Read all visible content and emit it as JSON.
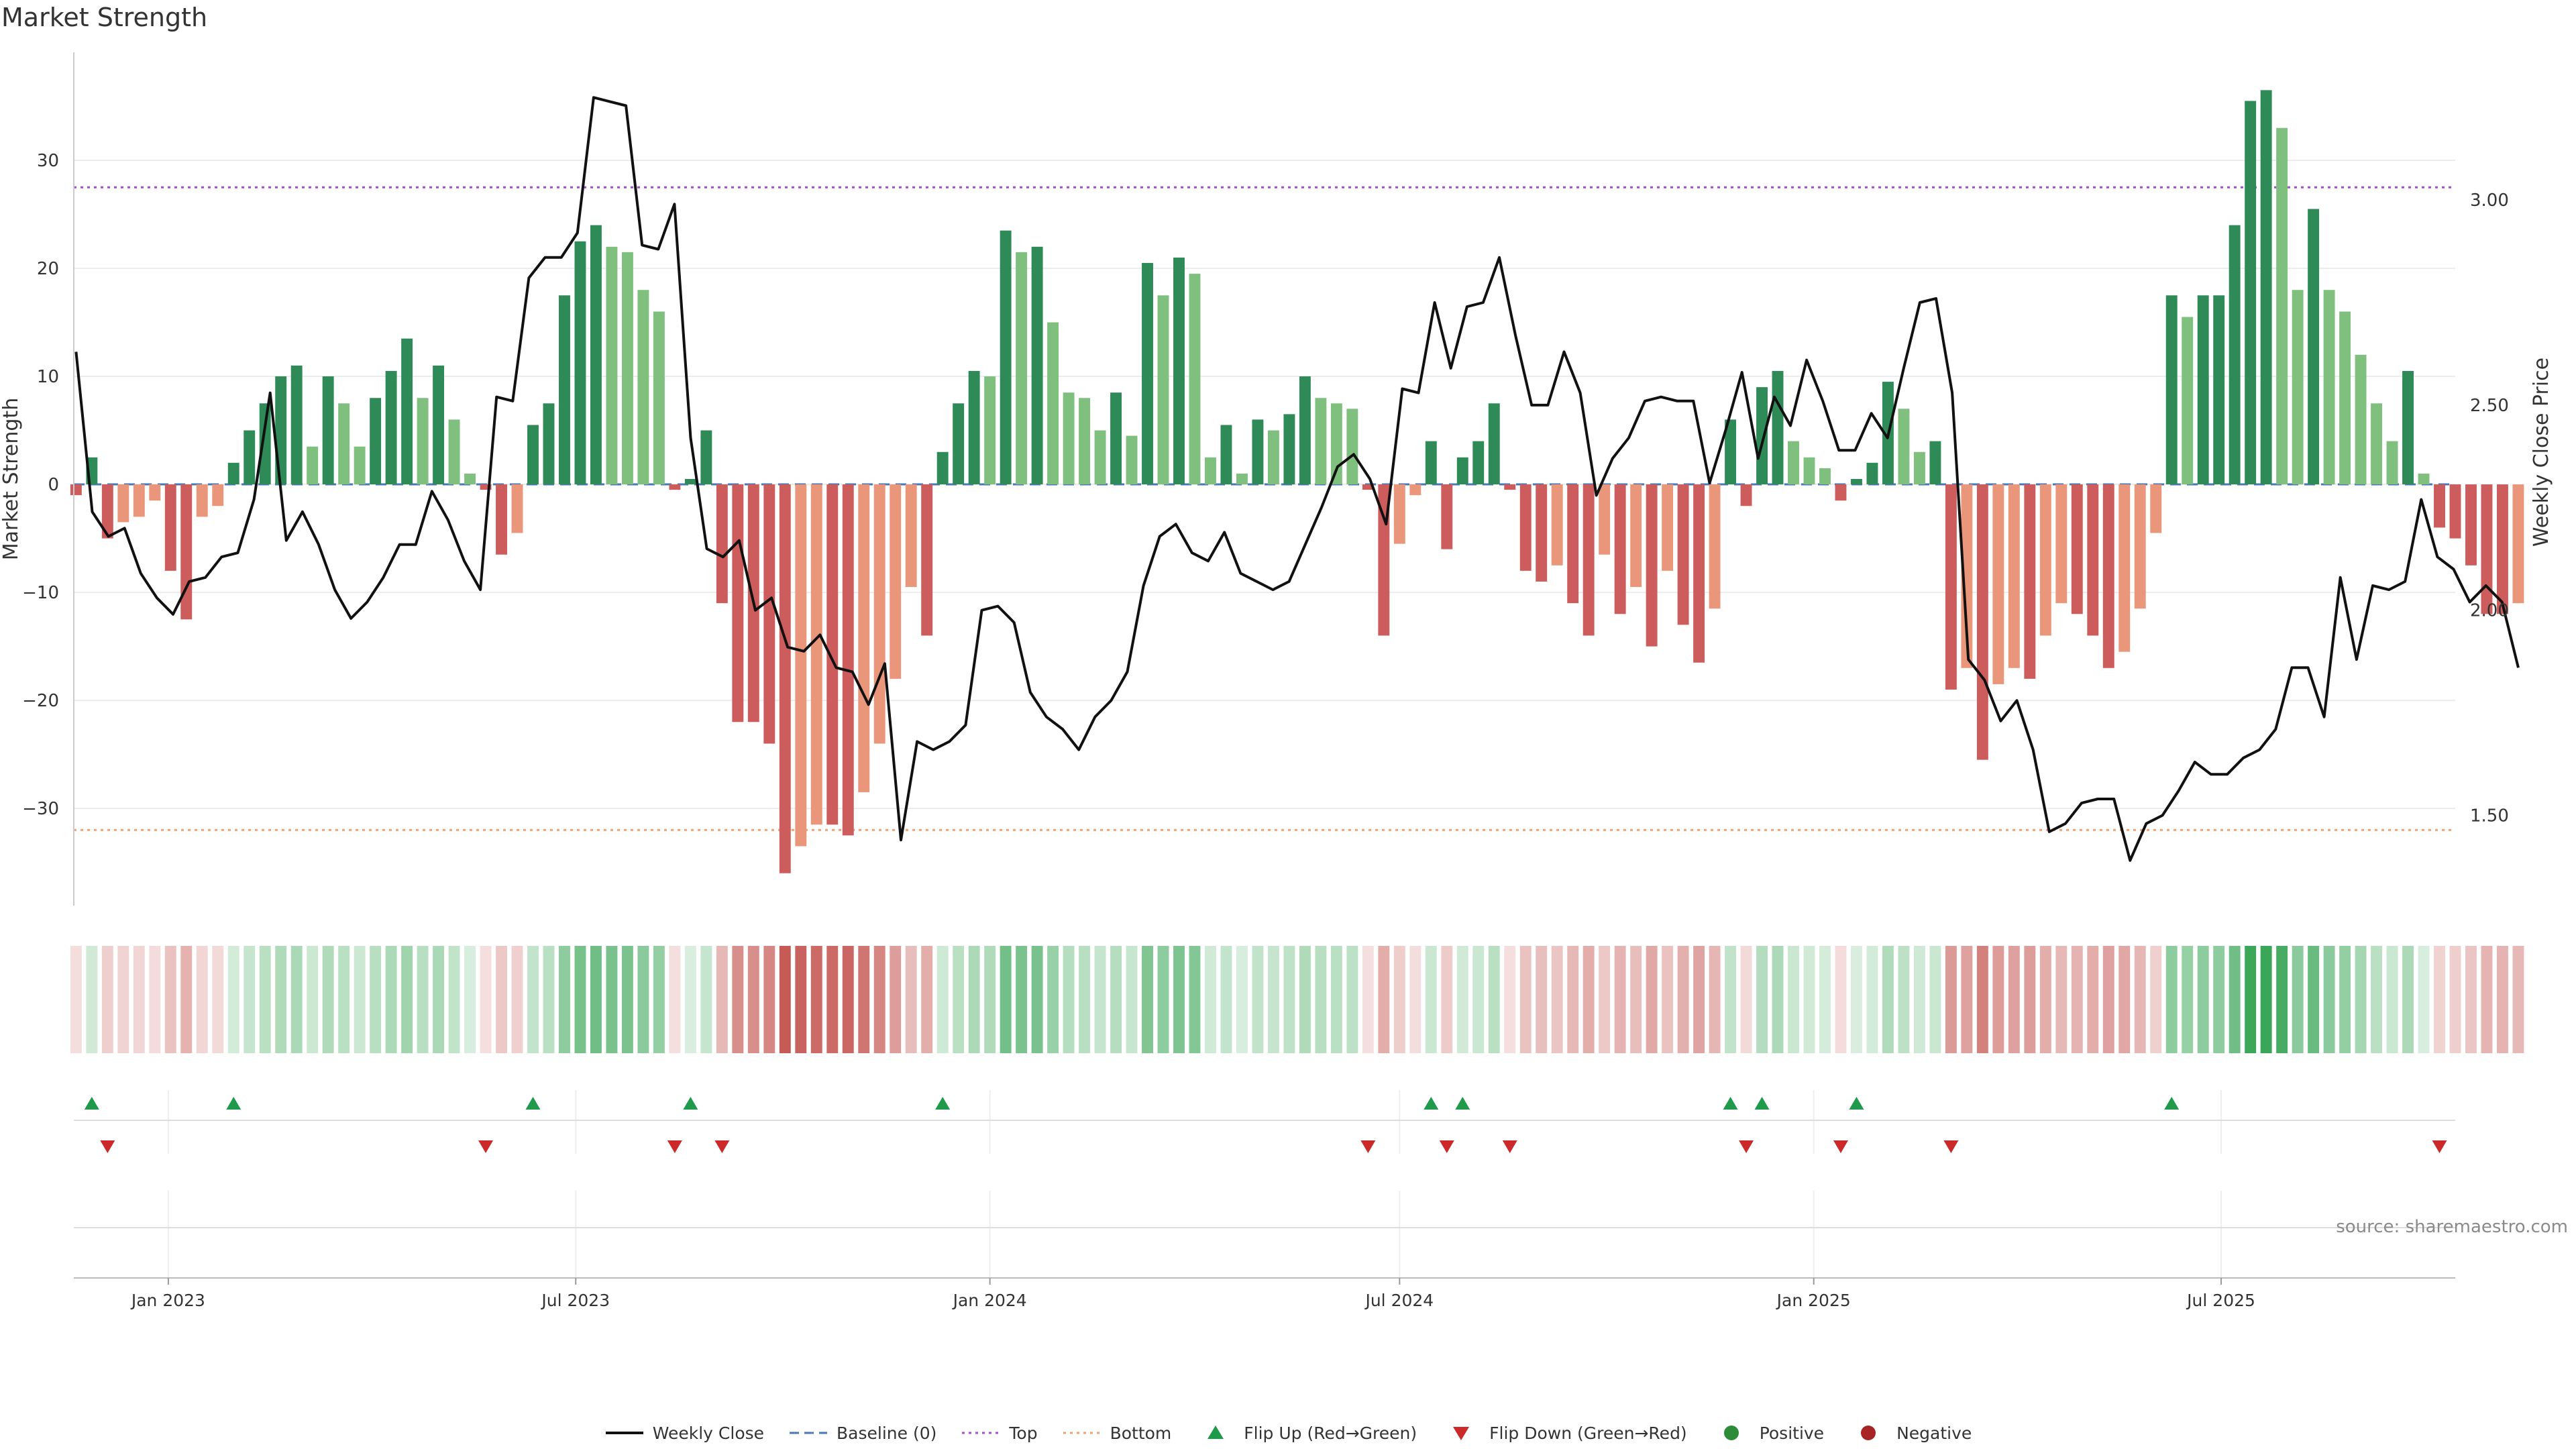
{
  "title": "Market Strength",
  "source": "source: sharemaestro.com",
  "chart_data": {
    "type": "bar",
    "ylabel_left": "Market Strength",
    "ylabel_right": "Weekly Close Price",
    "ylim_left": [
      -39,
      40
    ],
    "ylim_right": [
      1.28,
      3.36
    ],
    "yticks_left": [
      -30,
      -20,
      -10,
      0,
      10,
      20,
      30
    ],
    "yticks_right": [
      1.5,
      2.0,
      2.5,
      3.0
    ],
    "ytick_labels_left": [
      "−30",
      "−20",
      "−10",
      "0",
      "10",
      "20",
      "30"
    ],
    "ytick_labels_right": [
      "1.50",
      "2.00",
      "2.50",
      "3.00"
    ],
    "top_level": 27.5,
    "bottom_level": -32,
    "x_range": [
      "2022-11-20",
      "2025-10-13"
    ],
    "x_ticks": [
      {
        "date": "2023-01-01",
        "label": "Jan 2023"
      },
      {
        "date": "2023-07-01",
        "label": "Jul 2023"
      },
      {
        "date": "2024-01-01",
        "label": "Jan 2024"
      },
      {
        "date": "2024-07-01",
        "label": "Jul 2024"
      },
      {
        "date": "2025-01-01",
        "label": "Jan 2025"
      },
      {
        "date": "2025-07-01",
        "label": "Jul 2025"
      }
    ],
    "start_date": "2022-11-21",
    "weekly_step_days": 7,
    "strength": [
      -1,
      2.5,
      -5,
      -3.5,
      -3,
      -1.5,
      -8,
      -12.5,
      -3,
      -2,
      2,
      5,
      7.5,
      10,
      11,
      3.5,
      10,
      7.5,
      3.5,
      8,
      10.5,
      13.5,
      8,
      11,
      6,
      1,
      -0.5,
      -6.5,
      -4.5,
      5.5,
      7.5,
      17.5,
      22.5,
      24,
      22,
      21.5,
      18,
      16,
      -0.5,
      0.5,
      5,
      -11,
      -22,
      -22,
      -24,
      -36,
      -33.5,
      -31.5,
      -31.5,
      -32.5,
      -28.5,
      -24,
      -18,
      -9.5,
      -14,
      3,
      7.5,
      10.5,
      10,
      23.5,
      21.5,
      22,
      15,
      8.5,
      8,
      5,
      8.5,
      4.5,
      20.5,
      17.5,
      21,
      19.5,
      2.5,
      5.5,
      1,
      6,
      5,
      6.5,
      10,
      8,
      7.5,
      7,
      -0.5,
      -14,
      -5.5,
      -1,
      4,
      -6,
      2.5,
      4,
      7.5,
      -0.5,
      -8,
      -9,
      -7.5,
      -11,
      -14,
      -6.5,
      -12,
      -9.5,
      -15,
      -8,
      -13,
      -16.5,
      -11.5,
      6,
      -2,
      9,
      10.5,
      4,
      2.5,
      1.5,
      -1.5,
      0.5,
      2,
      9.5,
      7,
      3,
      4,
      -19,
      -17,
      -25.5,
      -18.5,
      -17,
      -18,
      -14,
      -11,
      -12,
      -14,
      -17,
      -15.5,
      -11.5,
      -4.5,
      17.5,
      15.5,
      17.5,
      17.5,
      24,
      35.5,
      36.5,
      33,
      18,
      25.5,
      18,
      16,
      12,
      7.5,
      4,
      10.5,
      1,
      -4,
      -5,
      -7.5,
      -12,
      -12,
      -11
    ],
    "weekly_close": [
      2.63,
      2.24,
      2.18,
      2.2,
      2.09,
      2.03,
      1.99,
      2.07,
      2.08,
      2.13,
      2.14,
      2.27,
      2.53,
      2.17,
      2.24,
      2.16,
      2.05,
      1.98,
      2.02,
      2.08,
      2.16,
      2.16,
      2.29,
      2.22,
      2.12,
      2.05,
      2.52,
      2.51,
      2.81,
      2.86,
      2.86,
      2.92,
      3.25,
      3.24,
      3.23,
      2.89,
      2.88,
      2.99,
      2.42,
      2.15,
      2.13,
      2.17,
      2.0,
      2.03,
      1.91,
      1.9,
      1.94,
      1.86,
      1.85,
      1.77,
      1.87,
      1.44,
      1.68,
      1.66,
      1.68,
      1.72,
      2.0,
      2.01,
      1.97,
      1.8,
      1.74,
      1.71,
      1.66,
      1.74,
      1.78,
      1.85,
      2.06,
      2.18,
      2.21,
      2.14,
      2.12,
      2.19,
      2.09,
      2.07,
      2.05,
      2.07,
      2.16,
      2.25,
      2.35,
      2.38,
      2.32,
      2.21,
      2.54,
      2.53,
      2.75,
      2.59,
      2.74,
      2.75,
      2.86,
      2.67,
      2.5,
      2.5,
      2.63,
      2.53,
      2.28,
      2.37,
      2.42,
      2.51,
      2.52,
      2.51,
      2.51,
      2.31,
      2.44,
      2.58,
      2.37,
      2.52,
      2.45,
      2.61,
      2.51,
      2.39,
      2.39,
      2.48,
      2.42,
      2.59,
      2.75,
      2.76,
      2.53,
      1.88,
      1.83,
      1.73,
      1.78,
      1.66,
      1.46,
      1.48,
      1.53,
      1.54,
      1.54,
      1.39,
      1.48,
      1.5,
      1.56,
      1.63,
      1.6,
      1.6,
      1.64,
      1.66,
      1.71,
      1.86,
      1.86,
      1.74,
      2.08,
      1.88,
      2.06,
      2.05,
      2.07,
      2.27,
      2.13,
      2.1,
      2.02,
      2.06,
      2.02,
      1.86
    ]
  },
  "legend": [
    {
      "label": "Weekly Close",
      "kind": "line",
      "color": "#111111"
    },
    {
      "label": "Baseline (0)",
      "kind": "dash",
      "color": "#4a78b5"
    },
    {
      "label": "Top",
      "kind": "dot",
      "color": "#a04fc8"
    },
    {
      "label": "Bottom",
      "kind": "dot",
      "color": "#f0a070"
    },
    {
      "label": "Flip Up (Red→Green)",
      "kind": "tri-up",
      "color": "#1e9a4a"
    },
    {
      "label": "Flip Down (Green→Red)",
      "kind": "tri-down",
      "color": "#cc2a2a"
    },
    {
      "label": "Positive",
      "kind": "dot-marker",
      "color": "#2e8b3a"
    },
    {
      "label": "Negative",
      "kind": "dot-marker",
      "color": "#a82424"
    }
  ],
  "colors": {
    "pos_strong": "#2e8b57",
    "pos_weak": "#7fc07f",
    "neg_strong": "#cd5c5c",
    "neg_weak": "#e9967a",
    "price_line": "#111111",
    "baseline": "#4a78b5",
    "top": "#a04fc8",
    "bottom": "#f0a070"
  }
}
